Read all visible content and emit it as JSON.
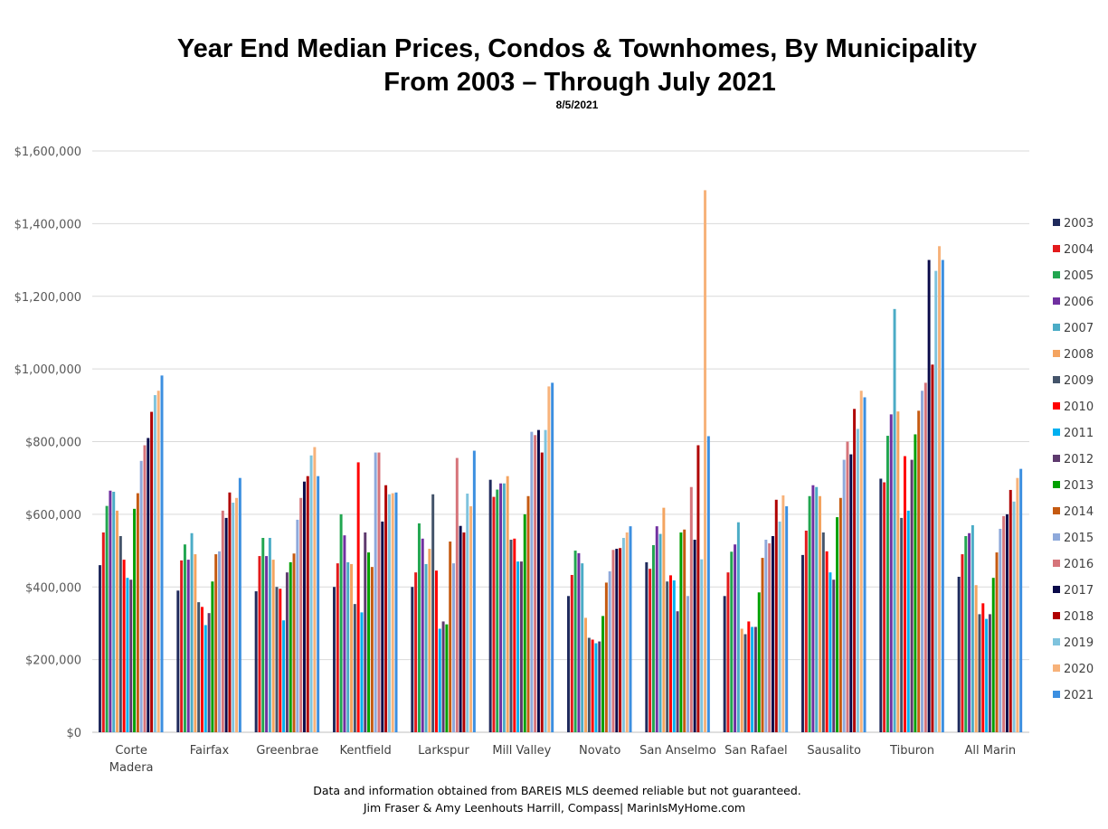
{
  "chart_data": {
    "type": "bar",
    "title_line1": "Year End Median Prices, Condos & Townhomes, By Municipality",
    "title_line2": "From 2003 – Through July 2021",
    "subtitle": "8/5/2021",
    "xlabel": "",
    "ylabel": "",
    "ylim": [
      0,
      1600000
    ],
    "yticks": [
      0,
      200000,
      400000,
      600000,
      800000,
      1000000,
      1200000,
      1400000,
      1600000
    ],
    "ytick_labels": [
      "$0",
      "$200,000",
      "$400,000",
      "$600,000",
      "$800,000",
      "$1,000,000",
      "$1,200,000",
      "$1,400,000",
      "$1,600,000"
    ],
    "grid": true,
    "legend_position": "right",
    "categories": [
      [
        "Corte",
        "Madera"
      ],
      [
        "Fairfax"
      ],
      [
        "Greenbrae"
      ],
      [
        "Kentfield"
      ],
      [
        "Larkspur"
      ],
      [
        "Mill Valley"
      ],
      [
        "Novato"
      ],
      [
        "San Anselmo"
      ],
      [
        "San Rafael"
      ],
      [
        "Sausalito"
      ],
      [
        "Tiburon"
      ],
      [
        "All Marin"
      ]
    ],
    "series": [
      {
        "name": "2003",
        "color": "#1f2a5c",
        "values": [
          460000,
          390000,
          388000,
          400000,
          400000,
          695000,
          375000,
          468000,
          375000,
          488000,
          698000,
          428000
        ]
      },
      {
        "name": "2004",
        "color": "#e31a1c",
        "values": [
          550000,
          473000,
          485000,
          465000,
          440000,
          648000,
          433000,
          450000,
          440000,
          555000,
          688000,
          490000
        ]
      },
      {
        "name": "2005",
        "color": "#21a650",
        "values": [
          623000,
          517000,
          535000,
          600000,
          575000,
          668000,
          500000,
          515000,
          497000,
          650000,
          816000,
          540000
        ]
      },
      {
        "name": "2006",
        "color": "#7030a0",
        "values": [
          665000,
          475000,
          485000,
          542000,
          533000,
          685000,
          493000,
          567000,
          517000,
          680000,
          875000,
          548000
        ]
      },
      {
        "name": "2007",
        "color": "#4bacc6",
        "values": [
          662000,
          548000,
          535000,
          468000,
          463000,
          685000,
          465000,
          546000,
          578000,
          675000,
          1165000,
          570000
        ]
      },
      {
        "name": "2008",
        "color": "#f4a460",
        "values": [
          610000,
          490000,
          475000,
          463000,
          505000,
          705000,
          315000,
          618000,
          285000,
          650000,
          883000,
          405000
        ]
      },
      {
        "name": "2009",
        "color": "#44546a",
        "values": [
          540000,
          358000,
          400000,
          353000,
          655000,
          530000,
          260000,
          415000,
          270000,
          550000,
          590000,
          325000
        ]
      },
      {
        "name": "2010",
        "color": "#ff0000",
        "values": [
          475000,
          345000,
          395000,
          743000,
          445000,
          533000,
          255000,
          432000,
          305000,
          498000,
          760000,
          355000
        ]
      },
      {
        "name": "2011",
        "color": "#00b0f0",
        "values": [
          425000,
          295000,
          308000,
          330000,
          285000,
          470000,
          245000,
          418000,
          290000,
          440000,
          610000,
          312000
        ]
      },
      {
        "name": "2012",
        "color": "#5e3a6e",
        "values": [
          420000,
          328000,
          440000,
          550000,
          305000,
          470000,
          250000,
          333000,
          290000,
          420000,
          750000,
          325000
        ]
      },
      {
        "name": "2013",
        "color": "#00a000",
        "values": [
          615000,
          415000,
          468000,
          495000,
          297000,
          600000,
          320000,
          550000,
          385000,
          592000,
          820000,
          425000
        ]
      },
      {
        "name": "2014",
        "color": "#c55a11",
        "values": [
          658000,
          490000,
          492000,
          455000,
          525000,
          650000,
          412000,
          558000,
          480000,
          645000,
          885000,
          495000
        ]
      },
      {
        "name": "2015",
        "color": "#8ea9db",
        "values": [
          747000,
          498000,
          585000,
          770000,
          465000,
          827000,
          443000,
          375000,
          530000,
          750000,
          940000,
          560000
        ]
      },
      {
        "name": "2016",
        "color": "#d6747a",
        "values": [
          790000,
          610000,
          645000,
          770000,
          755000,
          818000,
          502000,
          675000,
          520000,
          800000,
          962000,
          595000
        ]
      },
      {
        "name": "2017",
        "color": "#0a0a4a",
        "values": [
          810000,
          590000,
          690000,
          580000,
          568000,
          832000,
          505000,
          530000,
          540000,
          765000,
          1300000,
          600000
        ]
      },
      {
        "name": "2018",
        "color": "#b00000",
        "values": [
          882000,
          660000,
          705000,
          680000,
          550000,
          770000,
          507000,
          790000,
          640000,
          890000,
          1012000,
          667000
        ]
      },
      {
        "name": "2019",
        "color": "#7fc3dd",
        "values": [
          928000,
          632000,
          762000,
          655000,
          657000,
          832000,
          535000,
          476000,
          580000,
          835000,
          1270000,
          635000
        ]
      },
      {
        "name": "2020",
        "color": "#f7b27a",
        "values": [
          940000,
          645000,
          785000,
          658000,
          622000,
          952000,
          550000,
          1492000,
          652000,
          940000,
          1338000,
          700000
        ]
      },
      {
        "name": "2021",
        "color": "#3c8fe0",
        "values": [
          982000,
          700000,
          705000,
          660000,
          775000,
          962000,
          567000,
          815000,
          622000,
          922000,
          1300000,
          725000
        ]
      }
    ]
  },
  "footer": {
    "line1": "Data and information obtained from BAREIS MLS deemed reliable but not guaranteed.",
    "line2": "Jim Fraser & Amy Leenhouts Harrill, Compass| MarinIsMyHome.com"
  }
}
